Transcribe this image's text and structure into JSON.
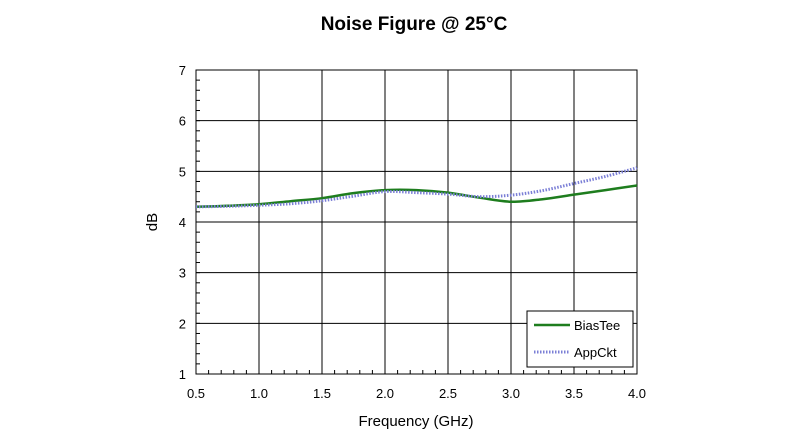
{
  "chart_data": {
    "type": "line",
    "title": "Noise Figure @ 25°C",
    "xlabel": "Frequency (GHz)",
    "ylabel": "dB",
    "xlim": [
      0.5,
      4.0
    ],
    "ylim": [
      1,
      7
    ],
    "xticks": [
      "0.5",
      "1.0",
      "1.5",
      "2.0",
      "2.5",
      "3.0",
      "3.5",
      "4.0"
    ],
    "yticks": [
      "1",
      "2",
      "3",
      "4",
      "5",
      "6",
      "7"
    ],
    "grid": true,
    "legend_position": "bottom-right",
    "series": [
      {
        "name": "BiasTee",
        "color": "#1e7d1e",
        "style": "solid",
        "x": [
          0.5,
          0.75,
          1.0,
          1.25,
          1.5,
          1.75,
          2.0,
          2.25,
          2.5,
          2.75,
          3.0,
          3.25,
          3.5,
          3.75,
          4.0
        ],
        "y": [
          4.3,
          4.32,
          4.35,
          4.41,
          4.47,
          4.57,
          4.63,
          4.63,
          4.58,
          4.48,
          4.4,
          4.45,
          4.54,
          4.63,
          4.72
        ]
      },
      {
        "name": "AppCkt",
        "color": "#7b7fd6",
        "style": "dotted",
        "x": [
          0.5,
          0.75,
          1.0,
          1.25,
          1.5,
          1.75,
          2.0,
          2.25,
          2.5,
          2.75,
          3.0,
          3.25,
          3.5,
          3.75,
          4.0
        ],
        "y": [
          4.3,
          4.31,
          4.33,
          4.36,
          4.42,
          4.51,
          4.6,
          4.58,
          4.55,
          4.5,
          4.53,
          4.62,
          4.76,
          4.9,
          5.07
        ]
      }
    ]
  }
}
